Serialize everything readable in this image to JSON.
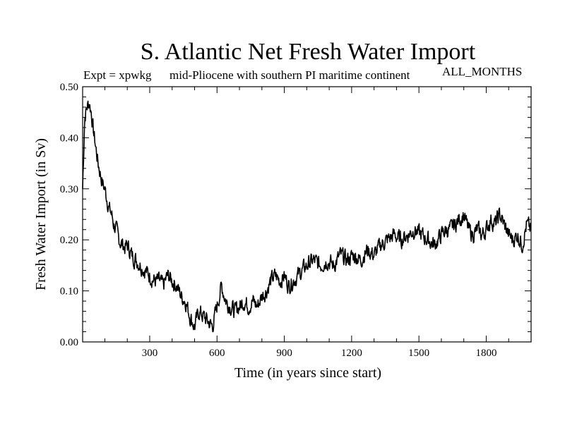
{
  "chart_data": {
    "type": "line",
    "title": "S. Atlantic Net Fresh Water Import",
    "subtitle_left": "Expt = xpwkg",
    "subtitle_center": "mid-Pliocene with southern PI maritime continent",
    "subtitle_right": "ALL_MONTHS",
    "xlabel": "Time (in years since start)",
    "ylabel": "Fresh Water Import (in Sv)",
    "xlim": [
      1,
      2000
    ],
    "ylim": [
      0.0,
      0.5
    ],
    "x_ticks": [
      300,
      600,
      900,
      1200,
      1500,
      1800
    ],
    "x_tick_labels": [
      "300",
      "600",
      "900",
      "1200",
      "1500",
      "1800"
    ],
    "y_ticks": [
      0.0,
      0.1,
      0.2,
      0.3,
      0.4,
      0.5
    ],
    "y_tick_labels": [
      "0.00",
      "0.10",
      "0.20",
      "0.30",
      "0.40",
      "0.50"
    ],
    "grid": false,
    "series": [
      {
        "name": "Fresh Water Import",
        "color": "#000000",
        "x": [
          1,
          10,
          20,
          30,
          40,
          50,
          60,
          70,
          80,
          90,
          100,
          110,
          120,
          130,
          140,
          150,
          160,
          170,
          180,
          190,
          200,
          220,
          240,
          260,
          280,
          300,
          320,
          340,
          360,
          380,
          400,
          420,
          440,
          460,
          480,
          500,
          520,
          540,
          560,
          580,
          600,
          620,
          640,
          660,
          680,
          700,
          720,
          740,
          760,
          780,
          800,
          820,
          840,
          860,
          880,
          900,
          920,
          940,
          960,
          980,
          1000,
          1030,
          1060,
          1090,
          1120,
          1150,
          1180,
          1210,
          1240,
          1270,
          1300,
          1330,
          1360,
          1390,
          1420,
          1450,
          1480,
          1510,
          1540,
          1570,
          1600,
          1620,
          1640,
          1660,
          1680,
          1700,
          1720,
          1740,
          1760,
          1780,
          1800,
          1820,
          1840,
          1860,
          1880,
          1900,
          1920,
          1940,
          1960,
          1980,
          2000
        ],
        "values": [
          0.3,
          0.44,
          0.46,
          0.47,
          0.45,
          0.41,
          0.38,
          0.35,
          0.33,
          0.31,
          0.3,
          0.28,
          0.26,
          0.25,
          0.23,
          0.22,
          0.205,
          0.195,
          0.19,
          0.185,
          0.19,
          0.17,
          0.16,
          0.15,
          0.14,
          0.13,
          0.12,
          0.12,
          0.11,
          0.13,
          0.12,
          0.11,
          0.09,
          0.08,
          0.05,
          0.03,
          0.06,
          0.05,
          0.04,
          0.03,
          0.07,
          0.11,
          0.08,
          0.07,
          0.06,
          0.07,
          0.08,
          0.07,
          0.08,
          0.07,
          0.09,
          0.1,
          0.12,
          0.13,
          0.12,
          0.13,
          0.11,
          0.12,
          0.13,
          0.14,
          0.15,
          0.16,
          0.15,
          0.16,
          0.15,
          0.17,
          0.16,
          0.17,
          0.16,
          0.18,
          0.17,
          0.19,
          0.2,
          0.21,
          0.2,
          0.21,
          0.22,
          0.21,
          0.2,
          0.19,
          0.21,
          0.22,
          0.22,
          0.23,
          0.24,
          0.25,
          0.22,
          0.21,
          0.22,
          0.21,
          0.22,
          0.24,
          0.23,
          0.25,
          0.23,
          0.21,
          0.2,
          0.21,
          0.19,
          0.23,
          0.22
        ]
      }
    ]
  }
}
